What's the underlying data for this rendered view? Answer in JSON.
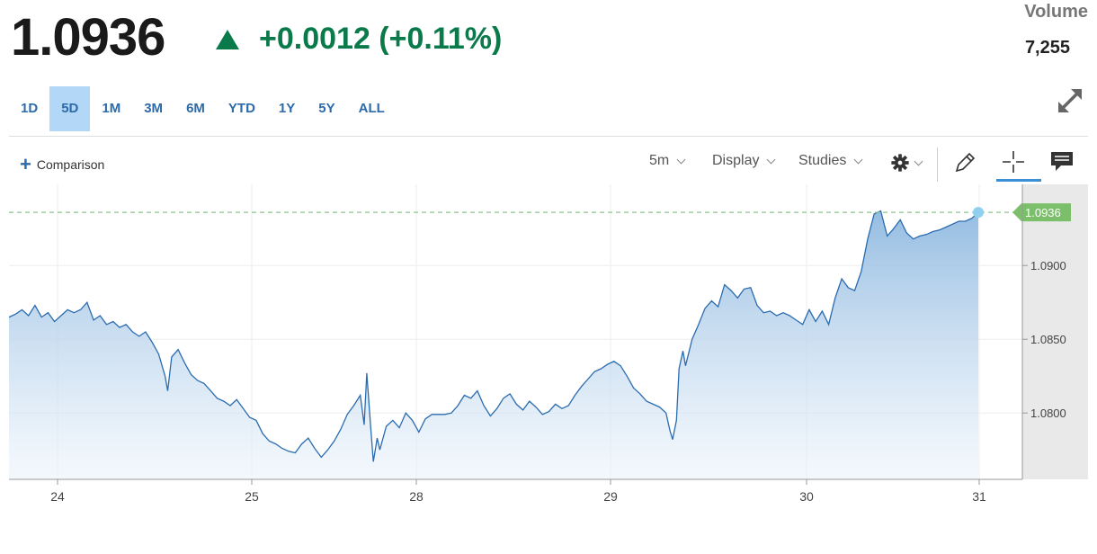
{
  "quote": {
    "price": "1.0936",
    "change": "+0.0012 (+0.11%)",
    "change_color": "#0a7a4a",
    "direction_icon": "up-triangle-icon"
  },
  "volume": {
    "label": "Volume",
    "value": "7,255"
  },
  "ranges": [
    "1D",
    "5D",
    "1M",
    "3M",
    "6M",
    "YTD",
    "1Y",
    "5Y",
    "ALL"
  ],
  "active_range": "5D",
  "toolbar": {
    "comparison_label": "Comparison",
    "interval": "5m",
    "display_label": "Display",
    "studies_label": "Studies",
    "icons": [
      "gear-icon",
      "pencil-icon",
      "crosshair-icon",
      "comment-icon"
    ]
  },
  "colors": {
    "accent": "#2c6aa8",
    "line": "#2b6cb0",
    "last_price_tag": "#7bbf6a",
    "active_range_bg": "#b3d7f7"
  },
  "chart_data": {
    "type": "area",
    "title": "",
    "xlabel": "",
    "ylabel": "",
    "x_ticks": [
      "24",
      "25",
      "28",
      "29",
      "30",
      "31"
    ],
    "y_ticks": [
      "1.0800",
      "1.0850",
      "1.0900"
    ],
    "ylim": [
      1.0755,
      1.0955
    ],
    "last_value_label": "1.0936",
    "series": [
      {
        "values": [
          [
            0.0,
            1.0865
          ],
          [
            0.05,
            1.0867
          ],
          [
            0.1,
            1.087
          ],
          [
            0.15,
            1.0866
          ],
          [
            0.2,
            1.0873
          ],
          [
            0.25,
            1.0865
          ],
          [
            0.3,
            1.0868
          ],
          [
            0.35,
            1.0862
          ],
          [
            0.4,
            1.0866
          ],
          [
            0.45,
            1.087
          ],
          [
            0.5,
            1.0868
          ],
          [
            0.55,
            1.087
          ],
          [
            0.6,
            1.0875
          ],
          [
            0.65,
            1.0863
          ],
          [
            0.7,
            1.0866
          ],
          [
            0.75,
            1.086
          ],
          [
            0.8,
            1.0862
          ],
          [
            0.85,
            1.0858
          ],
          [
            0.9,
            1.086
          ],
          [
            0.95,
            1.0855
          ],
          [
            1.0,
            1.0852
          ],
          [
            1.05,
            1.0855
          ],
          [
            1.1,
            1.0848
          ],
          [
            1.15,
            1.084
          ],
          [
            1.2,
            1.0825
          ],
          [
            1.22,
            1.0815
          ],
          [
            1.25,
            1.0838
          ],
          [
            1.3,
            1.0843
          ],
          [
            1.35,
            1.0834
          ],
          [
            1.4,
            1.0826
          ],
          [
            1.45,
            1.0822
          ],
          [
            1.5,
            1.082
          ],
          [
            1.55,
            1.0815
          ],
          [
            1.6,
            1.081
          ],
          [
            1.65,
            1.0808
          ],
          [
            1.7,
            1.0805
          ],
          [
            1.75,
            1.0809
          ],
          [
            1.8,
            1.0803
          ],
          [
            1.85,
            1.0797
          ],
          [
            1.9,
            1.0795
          ],
          [
            1.95,
            1.0786
          ],
          [
            2.0,
            1.0781
          ],
          [
            2.05,
            1.0779
          ],
          [
            2.1,
            1.0776
          ],
          [
            2.15,
            1.0774
          ],
          [
            2.2,
            1.0773
          ],
          [
            2.25,
            1.0779
          ],
          [
            2.3,
            1.0783
          ],
          [
            2.35,
            1.0776
          ],
          [
            2.4,
            1.077
          ],
          [
            2.45,
            1.0775
          ],
          [
            2.5,
            1.0781
          ],
          [
            2.55,
            1.0789
          ],
          [
            2.6,
            1.0799
          ],
          [
            2.65,
            1.0805
          ],
          [
            2.7,
            1.0812
          ],
          [
            2.73,
            1.0792
          ],
          [
            2.75,
            1.0827
          ],
          [
            2.78,
            1.079
          ],
          [
            2.8,
            1.0767
          ],
          [
            2.83,
            1.0783
          ],
          [
            2.85,
            1.0775
          ],
          [
            2.9,
            1.0791
          ],
          [
            2.95,
            1.0795
          ],
          [
            3.0,
            1.079
          ],
          [
            3.05,
            1.08
          ],
          [
            3.1,
            1.0795
          ],
          [
            3.15,
            1.0787
          ],
          [
            3.2,
            1.0796
          ],
          [
            3.25,
            1.0799
          ],
          [
            3.3,
            1.0799
          ],
          [
            3.35,
            1.0799
          ],
          [
            3.4,
            1.08
          ],
          [
            3.45,
            1.0805
          ],
          [
            3.5,
            1.0812
          ],
          [
            3.55,
            1.081
          ],
          [
            3.6,
            1.0815
          ],
          [
            3.65,
            1.0805
          ],
          [
            3.7,
            1.0798
          ],
          [
            3.75,
            1.0803
          ],
          [
            3.8,
            1.081
          ],
          [
            3.85,
            1.0813
          ],
          [
            3.9,
            1.0806
          ],
          [
            3.95,
            1.0802
          ],
          [
            4.0,
            1.0808
          ],
          [
            4.05,
            1.0804
          ],
          [
            4.1,
            1.0799
          ],
          [
            4.15,
            1.0801
          ],
          [
            4.2,
            1.0806
          ],
          [
            4.25,
            1.0803
          ],
          [
            4.3,
            1.0805
          ],
          [
            4.35,
            1.0812
          ],
          [
            4.4,
            1.0818
          ],
          [
            4.45,
            1.0823
          ],
          [
            4.5,
            1.0828
          ],
          [
            4.55,
            1.083
          ],
          [
            4.6,
            1.0833
          ],
          [
            4.65,
            1.0835
          ],
          [
            4.7,
            1.0832
          ],
          [
            4.75,
            1.0825
          ],
          [
            4.8,
            1.0817
          ],
          [
            4.85,
            1.0813
          ],
          [
            4.9,
            1.0808
          ],
          [
            4.95,
            1.0806
          ],
          [
            5.0,
            1.0804
          ],
          [
            5.05,
            1.08
          ],
          [
            5.08,
            1.0788
          ],
          [
            5.1,
            1.0782
          ],
          [
            5.13,
            1.0795
          ],
          [
            5.15,
            1.083
          ],
          [
            5.18,
            1.0842
          ],
          [
            5.2,
            1.0832
          ],
          [
            5.25,
            1.085
          ],
          [
            5.3,
            1.086
          ],
          [
            5.35,
            1.0871
          ],
          [
            5.4,
            1.0876
          ],
          [
            5.45,
            1.0872
          ],
          [
            5.5,
            1.0887
          ],
          [
            5.55,
            1.0883
          ],
          [
            5.6,
            1.0878
          ],
          [
            5.65,
            1.0884
          ],
          [
            5.7,
            1.0885
          ],
          [
            5.75,
            1.0873
          ],
          [
            5.8,
            1.0868
          ],
          [
            5.85,
            1.0869
          ],
          [
            5.9,
            1.0866
          ],
          [
            5.95,
            1.0868
          ],
          [
            6.0,
            1.0866
          ],
          [
            6.05,
            1.0863
          ],
          [
            6.1,
            1.086
          ],
          [
            6.15,
            1.087
          ],
          [
            6.2,
            1.0862
          ],
          [
            6.25,
            1.0869
          ],
          [
            6.3,
            1.086
          ],
          [
            6.35,
            1.0878
          ],
          [
            6.4,
            1.0891
          ],
          [
            6.45,
            1.0885
          ],
          [
            6.5,
            1.0883
          ],
          [
            6.55,
            1.0896
          ],
          [
            6.6,
            1.0918
          ],
          [
            6.65,
            1.0935
          ],
          [
            6.7,
            1.0937
          ],
          [
            6.75,
            1.092
          ],
          [
            6.8,
            1.0925
          ],
          [
            6.85,
            1.0931
          ],
          [
            6.9,
            1.0922
          ],
          [
            6.95,
            1.0918
          ],
          [
            7.0,
            1.092
          ],
          [
            7.05,
            1.0921
          ],
          [
            7.1,
            1.0923
          ],
          [
            7.15,
            1.0924
          ],
          [
            7.2,
            1.0926
          ],
          [
            7.25,
            1.0928
          ],
          [
            7.3,
            1.093
          ],
          [
            7.35,
            1.093
          ],
          [
            7.4,
            1.0932
          ],
          [
            7.45,
            1.0936
          ]
        ]
      }
    ]
  }
}
